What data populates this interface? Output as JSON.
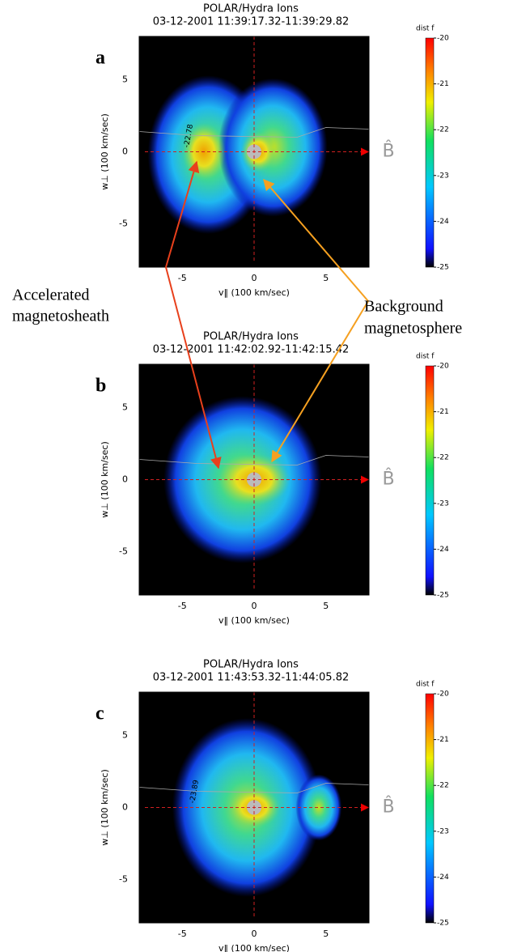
{
  "chart_data": [
    {
      "type": "heatmap",
      "title": "POLAR/Hydra Ions",
      "subtitle": "03-12-2001 11:39:17.32-11:39:29.82",
      "panel_label": "a",
      "xlabel": "v‖ (100 km/sec)",
      "ylabel": "w⊥ (100 km/sec)",
      "xlim": [
        -8,
        8
      ],
      "ylim": [
        -8,
        8
      ],
      "xticks": [
        -5,
        0,
        5
      ],
      "yticks": [
        -5,
        0,
        5
      ],
      "colorbar_label": "dist f",
      "clim": [
        -25,
        -20
      ],
      "cticks": [
        -25,
        -24,
        -23,
        -22,
        -21,
        -20
      ],
      "field_label": "B̂",
      "contour_label": "-22.78"
    },
    {
      "type": "heatmap",
      "title": "POLAR/Hydra Ions",
      "subtitle": "03-12-2001 11:42:02.92-11:42:15.42",
      "panel_label": "b",
      "xlabel": "v‖ (100 km/sec)",
      "ylabel": "w⊥ (100 km/sec)",
      "xlim": [
        -8,
        8
      ],
      "ylim": [
        -8,
        8
      ],
      "xticks": [
        -5,
        0,
        5
      ],
      "yticks": [
        -5,
        0,
        5
      ],
      "colorbar_label": "dist f",
      "clim": [
        -25,
        -20
      ],
      "cticks": [
        -25,
        -24,
        -23,
        -22,
        -21,
        -20
      ],
      "field_label": "B̂"
    },
    {
      "type": "heatmap",
      "title": "POLAR/Hydra Ions",
      "subtitle": "03-12-2001 11:43:53.32-11:44:05.82",
      "panel_label": "c",
      "xlabel": "v‖ (100 km/sec)",
      "ylabel": "w⊥ (100 km/sec)",
      "xlim": [
        -8,
        8
      ],
      "ylim": [
        -8,
        8
      ],
      "xticks": [
        -5,
        0,
        5
      ],
      "yticks": [
        -5,
        0,
        5
      ],
      "colorbar_label": "dist f",
      "clim": [
        -25,
        -20
      ],
      "cticks": [
        -25,
        -24,
        -23,
        -22,
        -21,
        -20
      ],
      "field_label": "B̂",
      "contour_label": "-23.89"
    }
  ],
  "annotations": [
    {
      "lines": [
        "Accelerated",
        "magnetosheath"
      ]
    },
    {
      "lines": [
        "Background",
        "magnetosphere"
      ]
    }
  ]
}
